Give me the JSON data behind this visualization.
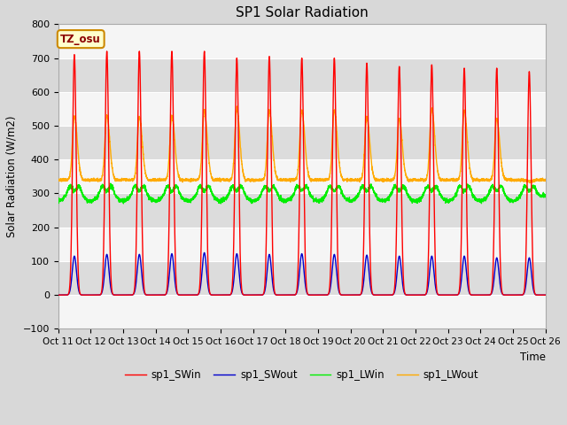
{
  "title": "SP1 Solar Radiation",
  "ylabel": "Solar Radiation (W/m2)",
  "xlabel": "Time",
  "ylim": [
    -100,
    800
  ],
  "yticks": [
    -100,
    0,
    100,
    200,
    300,
    400,
    500,
    600,
    700,
    800
  ],
  "xtick_labels": [
    "Oct 11",
    "Oct 12",
    "Oct 13",
    "Oct 14",
    "Oct 15",
    "Oct 16",
    "Oct 17",
    "Oct 18",
    "Oct 19",
    "Oct 20",
    "Oct 21",
    "Oct 22",
    "Oct 23",
    "Oct 24",
    "Oct 25",
    "Oct 26"
  ],
  "series_names": [
    "sp1_SWin",
    "sp1_SWout",
    "sp1_LWin",
    "sp1_LWout"
  ],
  "colors": [
    "#ff0000",
    "#0000cc",
    "#00ee00",
    "#ffaa00"
  ],
  "bg_color": "#d8d8d8",
  "plot_bg_light": "#f5f5f5",
  "plot_bg_dark": "#dcdcdc",
  "annotation_text": "TZ_osu",
  "annotation_bg": "#ffffcc",
  "annotation_border": "#cc8800",
  "swin_peaks": [
    710,
    720,
    720,
    720,
    720,
    700,
    705,
    700,
    700,
    685,
    675,
    680,
    670,
    670,
    660
  ],
  "swout_peaks": [
    115,
    120,
    120,
    122,
    125,
    122,
    120,
    122,
    120,
    118,
    115,
    115,
    115,
    110,
    110
  ],
  "lwin_base": 293,
  "lwout_base": 340,
  "lwout_day_peaks": [
    530,
    530,
    525,
    530,
    545,
    550,
    545,
    545,
    545,
    525,
    520,
    550,
    545,
    520,
    335
  ],
  "n_days": 15,
  "pts_per_day": 288
}
